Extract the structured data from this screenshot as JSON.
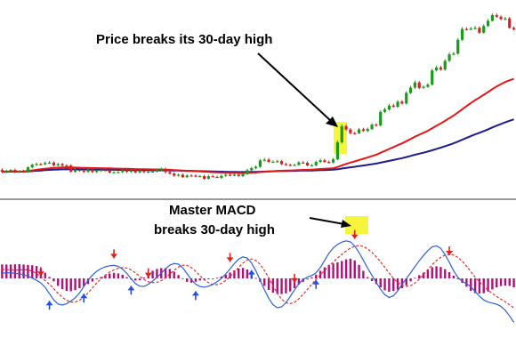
{
  "colors": {
    "background": "#ffffff",
    "bull_candle": "#1a9a1a",
    "bear_candle": "#d42020",
    "ma_fast": "#e01818",
    "ma_slow": "#1c1c8c",
    "separator": "#333333",
    "highlight": "#f5f53c",
    "histogram": "#b0107a",
    "macd_line": "#2f5fd8",
    "signal_line": "#e03030",
    "arrow_up": "#1f4fe8",
    "arrow_down": "#e02020"
  },
  "chart_data": [
    {
      "type": "candlestick",
      "panel": "price",
      "x": [
        0,
        1,
        2,
        3,
        4,
        5,
        6,
        7,
        8,
        9,
        10,
        11,
        12,
        13,
        14,
        15,
        16,
        17,
        18,
        19,
        20,
        21,
        22,
        23,
        24,
        25,
        26,
        27,
        28,
        29,
        30,
        31,
        32,
        33,
        34,
        35,
        36,
        37,
        38,
        39,
        40,
        41,
        42,
        43,
        44,
        45,
        46,
        47,
        48,
        49,
        50,
        51,
        52,
        53,
        54,
        55,
        56,
        57,
        58,
        59,
        60,
        61,
        62,
        63,
        64,
        65,
        66,
        67,
        68,
        69,
        70,
        71,
        72,
        73,
        74,
        75,
        76,
        77,
        78,
        79,
        80,
        81,
        82,
        83,
        84,
        85,
        86,
        87,
        88,
        89,
        90,
        91,
        92,
        93,
        94,
        95,
        96,
        97,
        98,
        99,
        100,
        101,
        102,
        103,
        104,
        105,
        106,
        107,
        108,
        109,
        110,
        111,
        112,
        113,
        114,
        115,
        116,
        117,
        118,
        119
      ],
      "close": [
        13.21,
        13.75,
        13.99,
        13.19,
        13.48,
        13.27,
        15.02,
        16.1,
        16.37,
        16.28,
        16.84,
        16.97,
        15.87,
        16.36,
        15.78,
        15.77,
        13.3,
        14.04,
        13.62,
        13.24,
        14.18,
        13.18,
        13.77,
        13.93,
        13.85,
        12.96,
        13.07,
        13.12,
        13.94,
        13.23,
        13.87,
        12.98,
        13.51,
        13.07,
        13.3,
        13.33,
        14.04,
        14.41,
        13.11,
        12.5,
        11.66,
        12.05,
        11.07,
        11.73,
        11.68,
        11.37,
        11.5,
        10.43,
        11.44,
        11.14,
        10.74,
        11.59,
        12.03,
        11.74,
        12.06,
        11.48,
        12.27,
        13.88,
        14.71,
        15.27,
        17.84,
        18.16,
        17.26,
        17.34,
        17.55,
        16.36,
        16.03,
        15.87,
        16.03,
        17.02,
        16.9,
        15.81,
        15.86,
        17.21,
        17.89,
        17.24,
        16.99,
        18.29,
        25.21,
        31.68,
        30.4,
        28.9,
        28.85,
        30.42,
        29.79,
        30.56,
        32.34,
        32.02,
        37.53,
        38.55,
        40.08,
        39.63,
        41.66,
        40.91,
        45.22,
        47.39,
        49.45,
        47.25,
        47.69,
        48.56,
        54.34,
        55.53,
        54.66,
        58.22,
        60.84,
        61.11,
        66.75,
        71.13,
        71.03,
        71.32,
        71.59,
        69.62,
        72.33,
        74.44,
        76.74,
        76.1,
        75.13,
        75.42,
        71.56,
        70.93
      ],
      "open": [
        14.01,
        13.21,
        13.75,
        13.99,
        13.19,
        13.48,
        13.27,
        15.02,
        16.1,
        16.37,
        16.28,
        16.84,
        16.97,
        15.87,
        16.36,
        15.78,
        15.77,
        13.3,
        14.04,
        13.62,
        13.24,
        14.18,
        13.18,
        13.77,
        13.93,
        13.85,
        12.96,
        13.07,
        13.12,
        13.94,
        13.23,
        13.87,
        12.98,
        13.51,
        13.07,
        13.3,
        13.33,
        14.04,
        14.41,
        13.11,
        12.5,
        11.66,
        12.05,
        11.07,
        11.73,
        11.68,
        11.37,
        11.5,
        10.43,
        11.44,
        11.14,
        10.74,
        11.59,
        12.03,
        11.74,
        12.06,
        11.48,
        12.27,
        13.88,
        14.71,
        15.27,
        17.84,
        18.16,
        17.26,
        17.34,
        17.55,
        16.36,
        16.03,
        15.87,
        16.03,
        17.02,
        16.9,
        15.81,
        15.86,
        17.21,
        17.89,
        17.24,
        16.99,
        18.29,
        25.21,
        31.68,
        30.4,
        28.9,
        28.85,
        30.42,
        29.79,
        30.56,
        32.34,
        32.02,
        37.53,
        38.55,
        40.08,
        39.63,
        41.66,
        40.91,
        45.22,
        47.39,
        49.45,
        47.25,
        47.69,
        48.56,
        54.34,
        55.53,
        54.66,
        58.22,
        60.84,
        61.11,
        66.75,
        71.13,
        71.03,
        71.32,
        71.59,
        69.62,
        72.33,
        74.44,
        76.74,
        76.1,
        75.13,
        75.42,
        71.56
      ],
      "high": [
        14.66,
        14.1,
        14.38,
        14.56,
        13.82,
        14.06,
        15.46,
        16.62,
        17.02,
        16.82,
        17.42,
        17.56,
        17.5,
        16.86,
        16.85,
        16.28,
        16.31,
        14.58,
        14.51,
        14.16,
        14.73,
        14.73,
        14.21,
        14.36,
        14.45,
        14.41,
        13.45,
        13.56,
        14.47,
        14.52,
        14.4,
        14.44,
        13.97,
        14.03,
        13.6,
        13.82,
        14.59,
        14.98,
        14.98,
        13.62,
        13.06,
        12.5,
        12.56,
        12.26,
        12.28,
        12.21,
        11.94,
        12.01,
        11.97,
        11.98,
        11.66,
        12.13,
        12.58,
        12.56,
        12.6,
        12.6,
        12.79,
        14.46,
        15.3,
        15.87,
        18.46,
        18.81,
        18.84,
        17.88,
        18.1,
        18.09,
        16.9,
        16.54,
        16.55,
        17.6,
        17.61,
        17.46,
        16.38,
        17.8,
        18.54,
        18.49,
        17.78,
        18.92,
        25.93,
        32.45,
        32.39,
        30.99,
        29.46,
        31.06,
        31.08,
        31.17,
        32.99,
        32.98,
        38.22,
        39.27,
        40.83,
        40.8,
        42.36,
        42.34,
        45.94,
        48.13,
        50.22,
        50.08,
        48.25,
        49.19,
        55.05,
        56.28,
        56.2,
        58.91,
        61.56,
        61.86,
        67.48,
        71.87,
        71.85,
        72.03,
        72.32,
        72.22,
        73.05,
        75.17,
        77.48,
        77.46,
        76.69,
        76.04,
        76.03,
        72.17
      ],
      "low": [
        12.74,
        12.7,
        13.28,
        12.74,
        12.71,
        12.82,
        12.86,
        14.59,
        15.62,
        15.85,
        15.86,
        16.39,
        15.49,
        15.42,
        15.39,
        15.37,
        12.86,
        12.84,
        13.23,
        12.81,
        12.82,
        12.76,
        12.73,
        13.39,
        13.47,
        12.51,
        12.56,
        12.65,
        12.68,
        12.84,
        12.84,
        12.61,
        12.6,
        12.69,
        12.7,
        12.92,
        12.98,
        13.65,
        12.65,
        12.09,
        11.24,
        11.28,
        10.75,
        10.72,
        11.3,
        11.04,
        10.99,
        10.09,
        10.1,
        11.07,
        10.85,
        10.42,
        11.25,
        11.42,
        11.43,
        11.21,
        11.09,
        11.94,
        13.47,
        14.31,
        14.88,
        17.37,
        16.77,
        16.89,
        16.94,
        15.95,
        15.62,
        15.53,
        15.59,
        15.69,
        16.52,
        15.43,
        15.47,
        15.52,
        16.86,
        16.86,
        16.65,
        16.61,
        17.89,
        24.65,
        29.91,
        28.34,
        28.35,
        28.52,
        29.44,
        29.37,
        30.12,
        31.59,
        31.67,
        37.11,
        38.01,
        39.19,
        39.1,
        40.52,
        40.52,
        44.71,
        46.78,
        46.75,
        46.87,
        47.23,
        48.18,
        53.87,
        54.28,
        54.26,
        57.68,
        60.45,
        60.75,
        66.35,
        70.55,
        70.56,
        70.94,
        69.16,
        69.26,
        71.97,
        74.09,
        75.62,
        74.7,
        74.61,
        71.23,
        70.6
      ],
      "ma_fast": [
        13.21,
        13.28,
        13.37,
        13.35,
        13.36,
        13.36,
        13.55,
        13.8,
        14.06,
        14.26,
        14.48,
        14.68,
        14.8,
        14.93,
        15.0,
        15.07,
        14.98,
        14.94,
        14.88,
        14.82,
        14.8,
        14.75,
        14.72,
        14.7,
        14.67,
        14.62,
        14.56,
        14.51,
        14.49,
        14.44,
        14.41,
        14.35,
        14.32,
        14.27,
        14.23,
        14.2,
        14.18,
        14.18,
        14.12,
        14.04,
        13.94,
        13.85,
        13.74,
        13.64,
        13.56,
        13.46,
        13.38,
        13.26,
        13.18,
        13.09,
        12.99,
        12.93,
        12.89,
        12.84,
        12.8,
        12.75,
        12.73,
        12.78,
        12.85,
        12.94,
        13.11,
        13.27,
        13.38,
        13.49,
        13.6,
        13.67,
        13.72,
        13.77,
        13.82,
        13.92,
        14.01,
        14.06,
        14.12,
        14.23,
        14.36,
        14.46,
        14.55,
        14.69,
        15.16,
        15.83,
        16.43,
        16.96,
        17.45,
        18.0,
        18.51,
        19.04,
        19.63,
        20.17,
        20.94,
        21.7,
        22.5,
        23.24,
        24.03,
        24.77,
        25.62,
        26.53,
        27.45,
        28.26,
        29.04,
        29.85,
        30.87,
        31.89,
        32.84,
        33.89,
        34.99,
        36.05,
        37.27,
        38.62,
        39.88,
        41.1,
        42.28,
        43.32,
        44.43,
        45.56,
        46.74,
        47.81,
        48.76,
        49.64,
        50.31,
        50.89
      ],
      "ma_slow": [
        13.21,
        13.24,
        13.28,
        13.28,
        13.29,
        13.29,
        13.39,
        13.52,
        13.65,
        13.77,
        13.89,
        14.01,
        14.08,
        14.16,
        14.22,
        14.27,
        14.24,
        14.23,
        14.2,
        14.17,
        14.17,
        14.14,
        14.12,
        14.11,
        14.1,
        14.07,
        14.04,
        14.01,
        13.99,
        13.97,
        13.96,
        13.93,
        13.91,
        13.89,
        13.87,
        13.85,
        13.85,
        13.86,
        13.83,
        13.8,
        13.76,
        13.72,
        13.67,
        13.63,
        13.6,
        13.55,
        13.51,
        13.46,
        13.42,
        13.37,
        13.33,
        13.29,
        13.26,
        13.23,
        13.2,
        13.16,
        13.14,
        13.15,
        13.17,
        13.2,
        13.27,
        13.34,
        13.39,
        13.45,
        13.5,
        13.54,
        13.57,
        13.6,
        13.63,
        13.68,
        13.72,
        13.75,
        13.78,
        13.84,
        13.9,
        13.95,
        14.0,
        14.07,
        14.28,
        14.56,
        14.82,
        15.06,
        15.29,
        15.55,
        15.79,
        16.04,
        16.31,
        16.57,
        16.93,
        17.29,
        17.67,
        18.03,
        18.42,
        18.79,
        19.21,
        19.66,
        20.13,
        20.56,
        20.99,
        21.43,
        21.96,
        22.51,
        23.03,
        23.6,
        24.2,
        24.79,
        25.48,
        26.23,
        26.96,
        27.68,
        28.39,
        29.05,
        29.74,
        30.46,
        31.22,
        31.94,
        32.63,
        33.31,
        33.92,
        34.51
      ]
    },
    {
      "type": "histogram-line",
      "panel": "oscillator",
      "x": [
        0,
        1,
        2,
        3,
        4,
        5,
        6,
        7,
        8,
        9,
        10,
        11,
        12,
        13,
        14,
        15,
        16,
        17,
        18,
        19,
        20,
        21,
        22,
        23,
        24,
        25,
        26,
        27,
        28,
        29,
        30,
        31,
        32,
        33,
        34,
        35,
        36,
        37,
        38,
        39,
        40,
        41,
        42,
        43,
        44,
        45,
        46,
        47,
        48,
        49,
        50,
        51,
        52,
        53,
        54,
        55,
        56,
        57,
        58,
        59,
        60,
        61,
        62,
        63,
        64,
        65,
        66,
        67,
        68,
        69,
        70,
        71,
        72,
        73,
        74,
        75,
        76,
        77,
        78,
        79,
        80,
        81,
        82,
        83,
        84,
        85,
        86,
        87,
        88,
        89,
        90,
        91,
        92,
        93,
        94,
        95,
        96,
        97,
        98,
        99,
        100,
        101,
        102,
        103,
        104,
        105,
        106,
        107,
        108,
        109,
        110,
        111,
        112,
        113,
        114,
        115,
        116,
        117,
        118,
        119
      ],
      "histogram": [
        0.78,
        0.78,
        0.78,
        0.79,
        0.8,
        0.78,
        0.76,
        0.74,
        0.7,
        0.55,
        0.32,
        0.08,
        -0.17,
        -0.42,
        -0.6,
        -0.7,
        -0.72,
        -0.66,
        -0.55,
        -0.44,
        -0.32,
        -0.18,
        -0.05,
        0.08,
        0.18,
        0.27,
        0.31,
        0.28,
        0.2,
        0.07,
        -0.06,
        -0.12,
        -0.1,
        0.05,
        0.25,
        0.43,
        0.53,
        0.58,
        0.58,
        0.53,
        0.38,
        0.19,
        -0.01,
        -0.19,
        -0.24,
        -0.19,
        -0.12,
        -0.07,
        -0.05,
        -0.02,
        0.04,
        0.11,
        0.21,
        0.33,
        0.45,
        0.55,
        0.59,
        0.5,
        0.26,
        0.02,
        -0.19,
        -0.42,
        -0.65,
        -0.8,
        -0.87,
        -0.88,
        -0.84,
        -0.73,
        -0.55,
        -0.34,
        -0.19,
        -0.06,
        0.06,
        0.21,
        0.43,
        0.62,
        0.76,
        0.84,
        0.9,
        0.98,
        1.07,
        1.11,
        1.01,
        0.76,
        0.42,
        0.07,
        -0.15,
        -0.32,
        -0.5,
        -0.67,
        -0.75,
        -0.71,
        -0.64,
        -0.55,
        -0.39,
        -0.17,
        0.03,
        0.18,
        0.33,
        0.49,
        0.63,
        0.68,
        0.64,
        0.52,
        0.35,
        0.15,
        -0.05,
        -0.25,
        -0.47,
        -0.7,
        -0.83,
        -0.85,
        -0.83,
        -0.74,
        -0.62,
        -0.5,
        -0.43,
        -0.4,
        -0.42,
        -0.5
      ],
      "macd_line": [
        0.3,
        0.31,
        0.32,
        0.28,
        0.26,
        0.21,
        0.13,
        0.02,
        -0.11,
        -0.26,
        -0.5,
        -0.86,
        -1.21,
        -1.44,
        -1.5,
        -1.42,
        -1.27,
        -1.09,
        -0.82,
        -0.46,
        -0.1,
        0.19,
        0.4,
        0.55,
        0.65,
        0.71,
        0.73,
        0.68,
        0.52,
        0.28,
        -0.02,
        -0.29,
        -0.44,
        -0.45,
        -0.33,
        -0.15,
        0.06,
        0.29,
        0.54,
        0.74,
        0.84,
        0.8,
        0.6,
        0.27,
        -0.07,
        -0.32,
        -0.46,
        -0.49,
        -0.44,
        -0.34,
        -0.19,
        0.0,
        0.25,
        0.53,
        0.83,
        1.08,
        1.21,
        1.14,
        0.87,
        0.43,
        -0.1,
        -0.64,
        -1.12,
        -1.48,
        -1.65,
        -1.6,
        -1.37,
        -1.02,
        -0.64,
        -0.31,
        -0.07,
        0.08,
        0.16,
        0.31,
        0.61,
        1.01,
        1.41,
        1.71,
        1.91,
        2.04,
        2.11,
        2.05,
        1.82,
        1.45,
        1.02,
        0.58,
        0.17,
        -0.23,
        -0.61,
        -0.92,
        -1.07,
        -0.98,
        -0.7,
        -0.34,
        -0.01,
        0.32,
        0.66,
        0.99,
        1.29,
        1.56,
        1.77,
        1.83,
        1.69,
        1.34,
        0.9,
        0.43,
        0.06,
        -0.17,
        -0.3,
        -0.47,
        -0.73,
        -1.0,
        -1.21,
        -1.33,
        -1.39,
        -1.45,
        -1.57,
        -1.79,
        -2.11,
        -2.47
      ],
      "signal_line": [
        0.5,
        0.49,
        0.47,
        0.46,
        0.47,
        0.49,
        0.48,
        0.41,
        0.27,
        0.08,
        -0.12,
        -0.33,
        -0.58,
        -0.84,
        -1.06,
        -1.23,
        -1.33,
        -1.33,
        -1.23,
        -1.05,
        -0.81,
        -0.53,
        -0.26,
        -0.02,
        0.18,
        0.35,
        0.48,
        0.57,
        0.61,
        0.58,
        0.48,
        0.31,
        0.12,
        -0.07,
        -0.19,
        -0.24,
        -0.22,
        -0.13,
        0.03,
        0.25,
        0.46,
        0.64,
        0.74,
        0.73,
        0.61,
        0.4,
        0.15,
        -0.08,
        -0.25,
        -0.34,
        -0.35,
        -0.28,
        -0.12,
        0.1,
        0.35,
        0.62,
        0.86,
        1.04,
        1.09,
        1.01,
        0.79,
        0.45,
        0.04,
        -0.42,
        -0.84,
        -1.17,
        -1.37,
        -1.42,
        -1.34,
        -1.15,
        -0.9,
        -0.61,
        -0.33,
        -0.05,
        0.2,
        0.45,
        0.68,
        0.92,
        1.14,
        1.35,
        1.54,
        1.7,
        1.81,
        1.85,
        1.8,
        1.66,
        1.46,
        1.21,
        0.93,
        0.62,
        0.3,
        0.0,
        -0.23,
        -0.39,
        -0.45,
        -0.41,
        -0.26,
        -0.04,
        0.22,
        0.49,
        0.76,
        1.0,
        1.18,
        1.31,
        1.36,
        1.32,
        1.18,
        0.96,
        0.69,
        0.38,
        0.07,
        -0.2,
        -0.44,
        -0.66,
        -0.85,
        -1.02,
        -1.17,
        -1.32,
        -1.48,
        -1.66
      ],
      "arrows_up": [
        22,
        38,
        60,
        90,
        116,
        146
      ],
      "arrows_down": [
        18,
        52,
        68,
        105,
        135,
        163,
        208
      ]
    }
  ],
  "annotations": {
    "price_break": "Price breaks its 30-day high",
    "macd_break_line1": "Master MACD",
    "macd_break_line2": "breaks 30-day high"
  }
}
